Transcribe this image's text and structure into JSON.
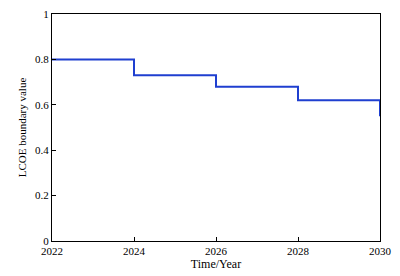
{
  "chart_data": {
    "type": "line",
    "line_style": "step",
    "x": [
      2022,
      2024,
      2026,
      2028,
      2030
    ],
    "values": [
      0.8,
      0.73,
      0.68,
      0.62,
      0.55
    ],
    "color": "#1f3fd0",
    "xlabel": "Time/Year",
    "ylabel": "LCOE boundary value",
    "xlim": [
      2022,
      2030
    ],
    "xticks": [
      2022,
      2024,
      2026,
      2028,
      2030
    ],
    "ylim": [
      0,
      1
    ],
    "yticks": [
      0,
      0.2,
      0.4,
      0.6,
      0.8,
      1
    ],
    "grid": false
  }
}
